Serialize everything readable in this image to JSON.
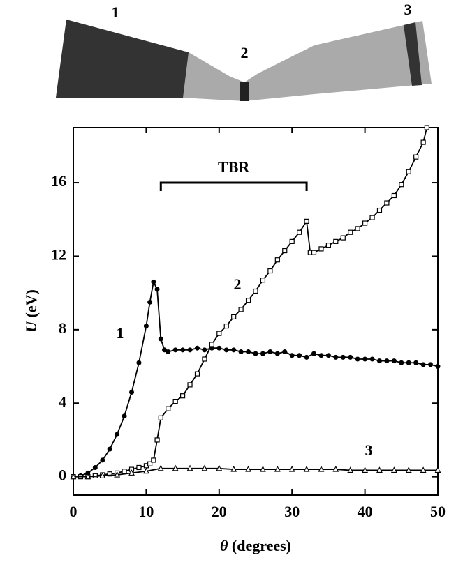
{
  "image_labels": [
    "1",
    "2",
    "3"
  ],
  "chart_data": {
    "type": "line",
    "xlabel": [
      "θ",
      "(degrees)"
    ],
    "ylabel": [
      "U",
      "(eV)"
    ],
    "xlim": [
      0,
      50
    ],
    "ylim": [
      -1,
      19
    ],
    "xticks": [
      0,
      10,
      20,
      30,
      40,
      50
    ],
    "yticks": [
      0,
      4,
      8,
      12,
      16
    ],
    "bracket": {
      "label": "TBR",
      "x": [
        12,
        32
      ],
      "y": 16
    },
    "series": [
      {
        "name": "1",
        "color": "#000000",
        "marker": "circle",
        "x": [
          0,
          1,
          2,
          3,
          4,
          5,
          6,
          7,
          8,
          9,
          10,
          10.5,
          11,
          11.5,
          12,
          12.5,
          13,
          14,
          15,
          16,
          17,
          18,
          19,
          20,
          21,
          22,
          23,
          24,
          25,
          26,
          27,
          28,
          29,
          30,
          31,
          32,
          33,
          34,
          35,
          36,
          37,
          38,
          39,
          40,
          41,
          42,
          43,
          44,
          45,
          46,
          47,
          48,
          49,
          50
        ],
        "values": [
          0,
          0.05,
          0.2,
          0.5,
          0.9,
          1.5,
          2.3,
          3.3,
          4.6,
          6.2,
          8.2,
          9.5,
          10.6,
          10.2,
          7.5,
          6.9,
          6.8,
          6.9,
          6.9,
          6.9,
          7.0,
          6.9,
          7.0,
          7.0,
          6.9,
          6.9,
          6.8,
          6.8,
          6.7,
          6.7,
          6.8,
          6.7,
          6.8,
          6.6,
          6.6,
          6.5,
          6.7,
          6.6,
          6.6,
          6.5,
          6.5,
          6.5,
          6.4,
          6.4,
          6.4,
          6.3,
          6.3,
          6.3,
          6.2,
          6.2,
          6.2,
          6.1,
          6.1,
          6.0
        ]
      },
      {
        "name": "2",
        "color": "#000000",
        "marker": "square",
        "x": [
          0,
          1,
          2,
          3,
          4,
          5,
          6,
          7,
          8,
          9,
          10,
          10.5,
          11,
          11.5,
          12,
          13,
          14,
          15,
          16,
          17,
          18,
          19,
          20,
          21,
          22,
          23,
          24,
          25,
          26,
          27,
          28,
          29,
          30,
          31,
          32,
          32.5,
          33,
          34,
          35,
          36,
          37,
          38,
          39,
          40,
          41,
          42,
          43,
          44,
          45,
          46,
          47,
          48,
          48.5
        ],
        "values": [
          0,
          0,
          0,
          0.05,
          0.1,
          0.15,
          0.2,
          0.3,
          0.4,
          0.5,
          0.6,
          0.7,
          0.9,
          2.0,
          3.2,
          3.7,
          4.1,
          4.4,
          5.0,
          5.6,
          6.4,
          7.2,
          7.8,
          8.2,
          8.7,
          9.1,
          9.6,
          10.1,
          10.7,
          11.2,
          11.8,
          12.3,
          12.8,
          13.3,
          13.9,
          12.2,
          12.2,
          12.4,
          12.6,
          12.8,
          13.0,
          13.3,
          13.5,
          13.8,
          14.1,
          14.5,
          14.9,
          15.3,
          15.9,
          16.6,
          17.4,
          18.2,
          19.0
        ]
      },
      {
        "name": "3",
        "color": "#000000",
        "marker": "triangle",
        "x": [
          0,
          2,
          4,
          6,
          8,
          10,
          12,
          14,
          16,
          18,
          20,
          22,
          24,
          26,
          28,
          30,
          32,
          34,
          36,
          38,
          40,
          42,
          44,
          46,
          48,
          50
        ],
        "values": [
          0,
          0,
          0.05,
          0.1,
          0.2,
          0.3,
          0.45,
          0.45,
          0.45,
          0.45,
          0.45,
          0.4,
          0.4,
          0.4,
          0.4,
          0.4,
          0.4,
          0.4,
          0.4,
          0.35,
          0.35,
          0.35,
          0.35,
          0.35,
          0.35,
          0.35
        ]
      }
    ]
  }
}
